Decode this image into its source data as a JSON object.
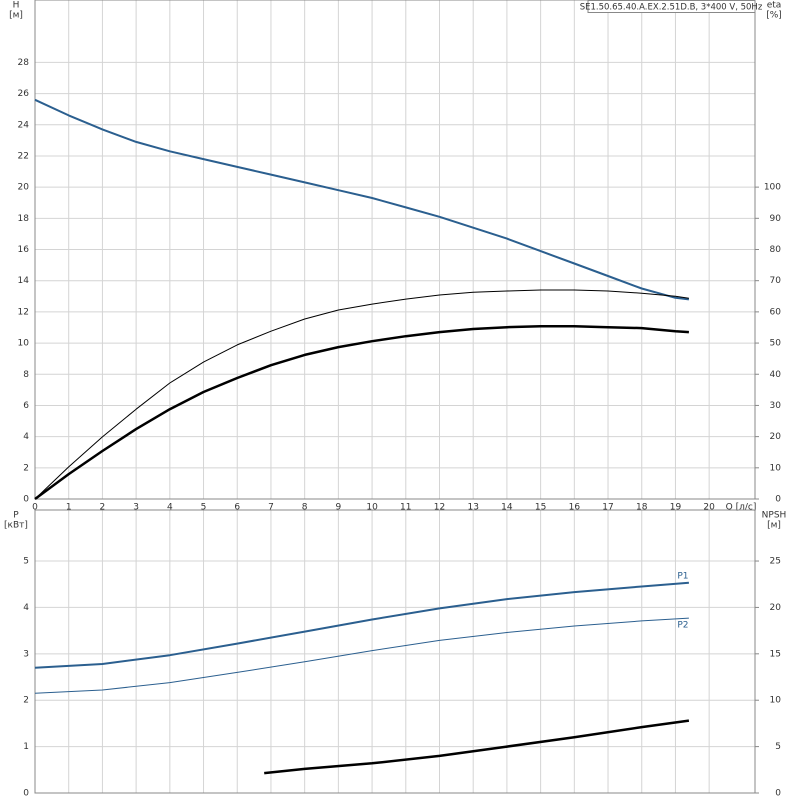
{
  "chart_data": [
    {
      "type": "line",
      "title": "SE1.50.65.40.A.EX.2.51D.B, 3*400 V, 50Hz",
      "ylabel": [
        "H",
        "[м]"
      ],
      "y2label": [
        "eta",
        "[%]"
      ],
      "xlabel": "Q [л/с]",
      "xlim": [
        0,
        21.36
      ],
      "xticks": [
        0,
        1,
        2,
        3,
        4,
        5,
        6,
        7,
        8,
        9,
        10,
        11,
        12,
        13,
        14,
        15,
        16,
        17,
        18,
        19,
        20
      ],
      "ylim": [
        0,
        32
      ],
      "yticks": [
        0,
        2,
        4,
        6,
        8,
        10,
        12,
        14,
        16,
        18,
        20,
        22,
        24,
        26,
        28
      ],
      "y2lim": [
        0,
        160
      ],
      "y2ticks": [
        0,
        10,
        20,
        30,
        40,
        50,
        60,
        70,
        80,
        90,
        100
      ],
      "grid": true,
      "xtick_labels": true,
      "series": [
        {
          "color": "#2b5f8f",
          "line_width": 2,
          "axis": "y",
          "x": [
            0,
            1,
            2,
            3,
            4,
            5,
            6,
            7,
            8,
            9,
            10,
            11,
            12,
            13,
            14,
            15,
            16,
            17,
            18,
            19,
            19.4
          ],
          "values": [
            25.6,
            24.6,
            23.7,
            22.9,
            22.3,
            21.8,
            21.3,
            20.8,
            20.3,
            19.8,
            19.3,
            18.7,
            18.1,
            17.4,
            16.7,
            15.9,
            15.1,
            14.3,
            13.5,
            12.9,
            12.8
          ]
        },
        {
          "color": "#000000",
          "line_width": 1,
          "axis": "y2",
          "x": [
            0,
            1,
            2,
            3,
            4,
            5,
            6,
            7,
            8,
            9,
            10,
            11,
            12,
            13,
            14,
            15,
            16,
            17,
            18,
            19,
            19.4
          ],
          "values": [
            0,
            10.3,
            19.9,
            28.8,
            37.2,
            43.9,
            49.4,
            53.8,
            57.7,
            60.6,
            62.5,
            64.1,
            65.4,
            66.3,
            66.7,
            67,
            67,
            66.7,
            66,
            65,
            64.4
          ]
        },
        {
          "color": "#000000",
          "line_width": 2.5,
          "axis": "y2",
          "x": [
            0,
            1,
            2,
            3,
            4,
            5,
            6,
            7,
            8,
            9,
            10,
            11,
            12,
            13,
            14,
            15,
            16,
            17,
            18,
            19,
            19.4
          ],
          "values": [
            0,
            8,
            15.4,
            22.4,
            28.8,
            34.3,
            38.8,
            42.9,
            46.2,
            48.7,
            50.6,
            52.2,
            53.5,
            54.5,
            55.1,
            55.4,
            55.4,
            55.1,
            54.8,
            53.8,
            53.5
          ]
        }
      ]
    },
    {
      "type": "line",
      "ylabel": [
        "P",
        "[кВт]"
      ],
      "y2label": [
        "NPSH",
        "[м]"
      ],
      "xlim": [
        0,
        21.36
      ],
      "xticks": [
        0,
        1,
        2,
        3,
        4,
        5,
        6,
        7,
        8,
        9,
        10,
        11,
        12,
        13,
        14,
        15,
        16,
        17,
        18,
        19,
        20
      ],
      "ylim": [
        0,
        6.1
      ],
      "yticks": [
        0,
        1,
        2,
        3,
        4,
        5
      ],
      "y2lim": [
        0,
        30.5
      ],
      "y2ticks": [
        0,
        5,
        10,
        15,
        20,
        25
      ],
      "grid": true,
      "xtick_labels": false,
      "series": [
        {
          "name": "P1",
          "color": "#2b5f8f",
          "line_width": 2,
          "axis": "y",
          "x": [
            0,
            2,
            4,
            6,
            8,
            10,
            12,
            14,
            16,
            18,
            19.4
          ],
          "values": [
            2.7,
            2.78,
            2.97,
            3.22,
            3.48,
            3.74,
            3.98,
            4.18,
            4.33,
            4.45,
            4.53
          ]
        },
        {
          "name": "P2",
          "color": "#2b5f8f",
          "line_width": 1,
          "axis": "y",
          "x": [
            0,
            2,
            4,
            6,
            8,
            10,
            12,
            14,
            16,
            18,
            19.4
          ],
          "values": [
            2.15,
            2.22,
            2.38,
            2.6,
            2.83,
            3.07,
            3.29,
            3.46,
            3.6,
            3.71,
            3.77
          ]
        },
        {
          "color": "#000000",
          "line_width": 2.5,
          "axis": "y2",
          "x": [
            6.8,
            8,
            10,
            12,
            14,
            16,
            18,
            19.4
          ],
          "values": [
            2.15,
            2.6,
            3.2,
            4,
            5,
            6,
            7.1,
            7.8
          ]
        }
      ]
    }
  ]
}
